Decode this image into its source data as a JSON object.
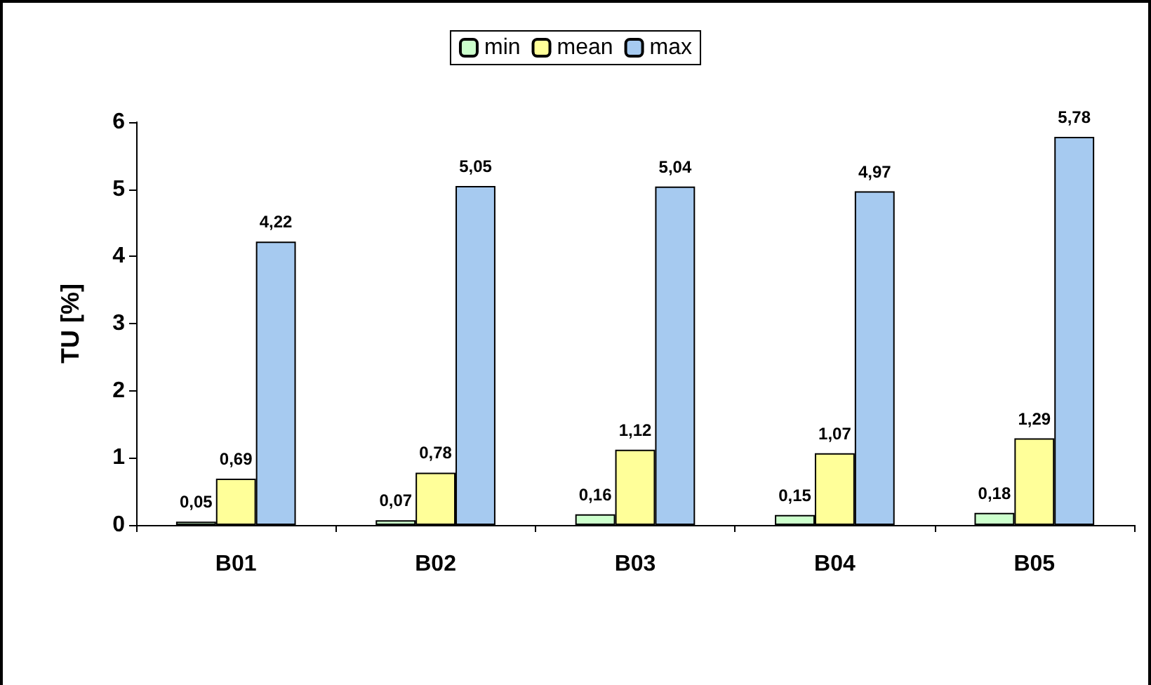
{
  "chart_data": {
    "type": "bar",
    "ylabel": "TU [%]",
    "categories": [
      "B01",
      "B02",
      "B03",
      "B04",
      "B05"
    ],
    "series": [
      {
        "name": "min",
        "color": "#ccffcc",
        "values": [
          0.05,
          0.07,
          0.16,
          0.15,
          0.18
        ],
        "value_labels": [
          "0,05",
          "0,07",
          "0,16",
          "0,15",
          "0,18"
        ]
      },
      {
        "name": "mean",
        "color": "#ffff99",
        "values": [
          0.69,
          0.78,
          1.12,
          1.07,
          1.29
        ],
        "value_labels": [
          "0,69",
          "0,78",
          "1,12",
          "1,07",
          "1,29"
        ]
      },
      {
        "name": "max",
        "color": "#a6caf0",
        "values": [
          4.22,
          5.05,
          5.04,
          4.97,
          5.78
        ],
        "value_labels": [
          "4,22",
          "5,05",
          "5,04",
          "4,97",
          "5,78"
        ]
      }
    ],
    "ylim": [
      0,
      6
    ],
    "yticks": [
      0,
      1,
      2,
      3,
      4,
      5,
      6
    ],
    "grid": false,
    "legend": "top"
  }
}
